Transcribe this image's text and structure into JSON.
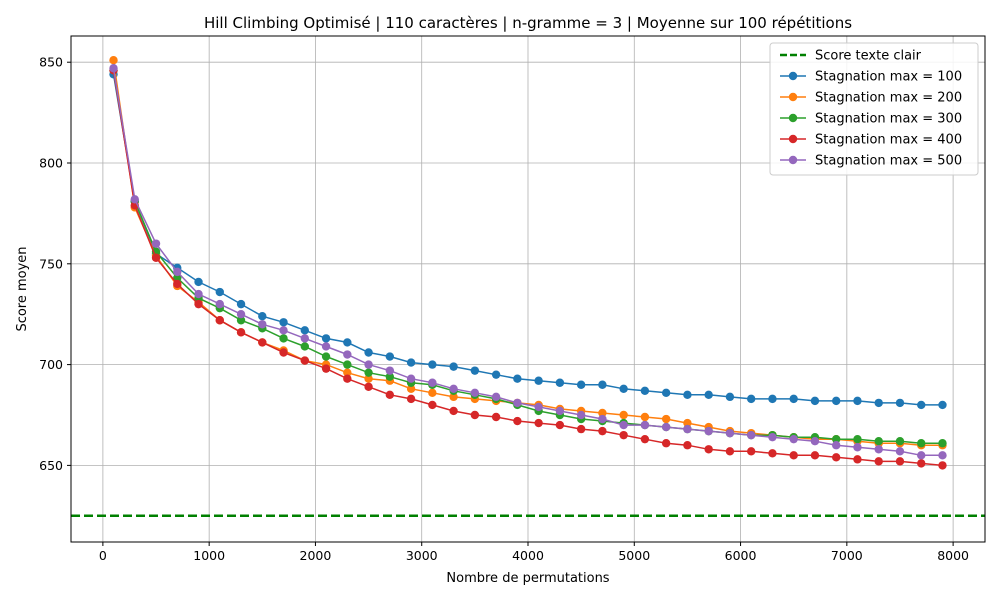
{
  "chart_data": {
    "type": "line",
    "title": "Hill Climbing Optimisé | 110 caractères | n-gramme = 3 | Moyenne sur 100 répétitions",
    "xlabel": "Nombre de permutations",
    "ylabel": "Score moyen",
    "xlim": [
      -300,
      8300
    ],
    "ylim": [
      612,
      863
    ],
    "xticks": [
      0,
      1000,
      2000,
      3000,
      4000,
      5000,
      6000,
      7000,
      8000
    ],
    "yticks": [
      650,
      700,
      750,
      800,
      850
    ],
    "grid": true,
    "legend_position": "top-right",
    "reference_line": {
      "name": "Score texte clair",
      "value": 625,
      "color": "#008000",
      "style": "dashed"
    },
    "x": [
      100,
      300,
      500,
      700,
      900,
      1100,
      1300,
      1500,
      1700,
      1900,
      2100,
      2300,
      2500,
      2700,
      2900,
      3100,
      3300,
      3500,
      3700,
      3900,
      4100,
      4300,
      4500,
      4700,
      4900,
      5100,
      5300,
      5500,
      5700,
      5900,
      6100,
      6300,
      6500,
      6700,
      6900,
      7100,
      7300,
      7500,
      7700,
      7900
    ],
    "series": [
      {
        "name": "Stagnation max = 100",
        "color": "#1f77b4",
        "values": [
          844,
          781,
          755,
          748,
          741,
          736,
          730,
          724,
          721,
          717,
          713,
          711,
          706,
          704,
          701,
          700,
          699,
          697,
          695,
          693,
          692,
          691,
          690,
          690,
          688,
          687,
          686,
          685,
          685,
          684,
          683,
          683,
          683,
          682,
          682,
          682,
          681,
          681,
          680,
          680
        ]
      },
      {
        "name": "Stagnation max = 200",
        "color": "#ff7f0e",
        "values": [
          851,
          778,
          754,
          739,
          731,
          722,
          716,
          711,
          707,
          702,
          700,
          696,
          693,
          692,
          688,
          686,
          684,
          683,
          682,
          681,
          680,
          678,
          677,
          676,
          675,
          674,
          673,
          671,
          669,
          667,
          666,
          665,
          664,
          663,
          663,
          662,
          661,
          661,
          660,
          660
        ]
      },
      {
        "name": "Stagnation max = 300",
        "color": "#2ca02c",
        "values": [
          846,
          781,
          756,
          743,
          733,
          728,
          722,
          718,
          713,
          709,
          704,
          700,
          696,
          694,
          691,
          690,
          687,
          685,
          683,
          680,
          677,
          675,
          673,
          672,
          671,
          670,
          669,
          668,
          667,
          666,
          665,
          665,
          664,
          664,
          663,
          663,
          662,
          662,
          661,
          661
        ]
      },
      {
        "name": "Stagnation max = 400",
        "color": "#d62728",
        "values": [
          846,
          779,
          753,
          740,
          730,
          722,
          716,
          711,
          706,
          702,
          698,
          693,
          689,
          685,
          683,
          680,
          677,
          675,
          674,
          672,
          671,
          670,
          668,
          667,
          665,
          663,
          661,
          660,
          658,
          657,
          657,
          656,
          655,
          655,
          654,
          653,
          652,
          652,
          651,
          650
        ]
      },
      {
        "name": "Stagnation max = 500",
        "color": "#9467bd",
        "values": [
          847,
          782,
          760,
          746,
          735,
          730,
          725,
          720,
          717,
          713,
          709,
          705,
          700,
          697,
          693,
          691,
          688,
          686,
          684,
          681,
          679,
          677,
          675,
          673,
          670,
          670,
          669,
          668,
          667,
          666,
          665,
          664,
          663,
          662,
          660,
          659,
          658,
          657,
          655,
          655
        ]
      }
    ]
  }
}
